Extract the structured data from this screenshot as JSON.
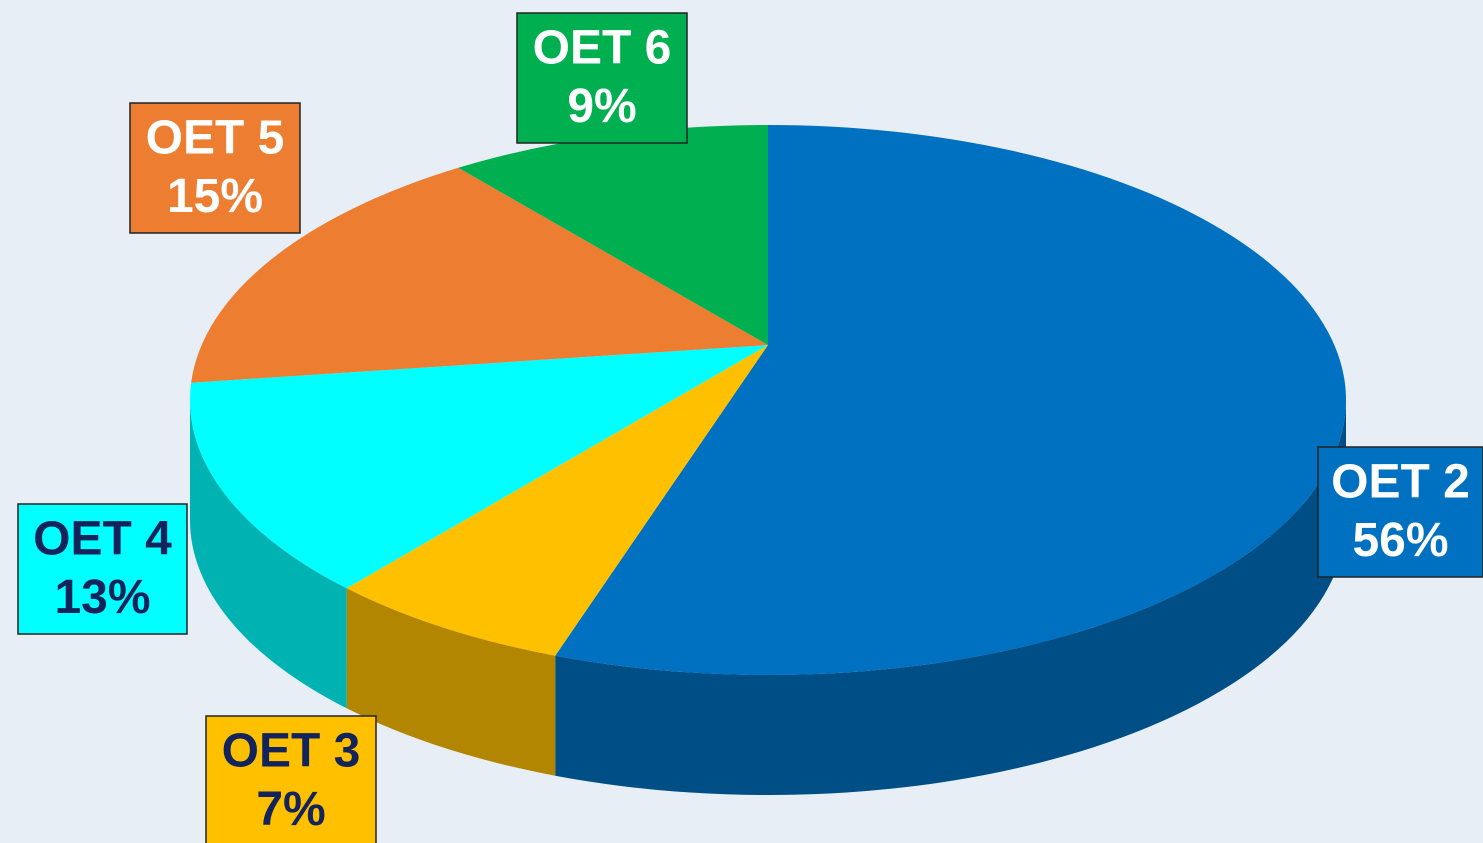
{
  "chart_data": {
    "type": "pie",
    "categories": [
      "OET 2",
      "OET 3",
      "OET 4",
      "OET 5",
      "OET 6"
    ],
    "values": [
      56,
      7,
      13,
      15,
      9
    ],
    "value_labels": [
      "56%",
      "7%",
      "13%",
      "15%",
      "9%"
    ],
    "colors": [
      "#0070c0",
      "#ffc000",
      "#00ffff",
      "#ed7d31",
      "#00b050"
    ]
  }
}
